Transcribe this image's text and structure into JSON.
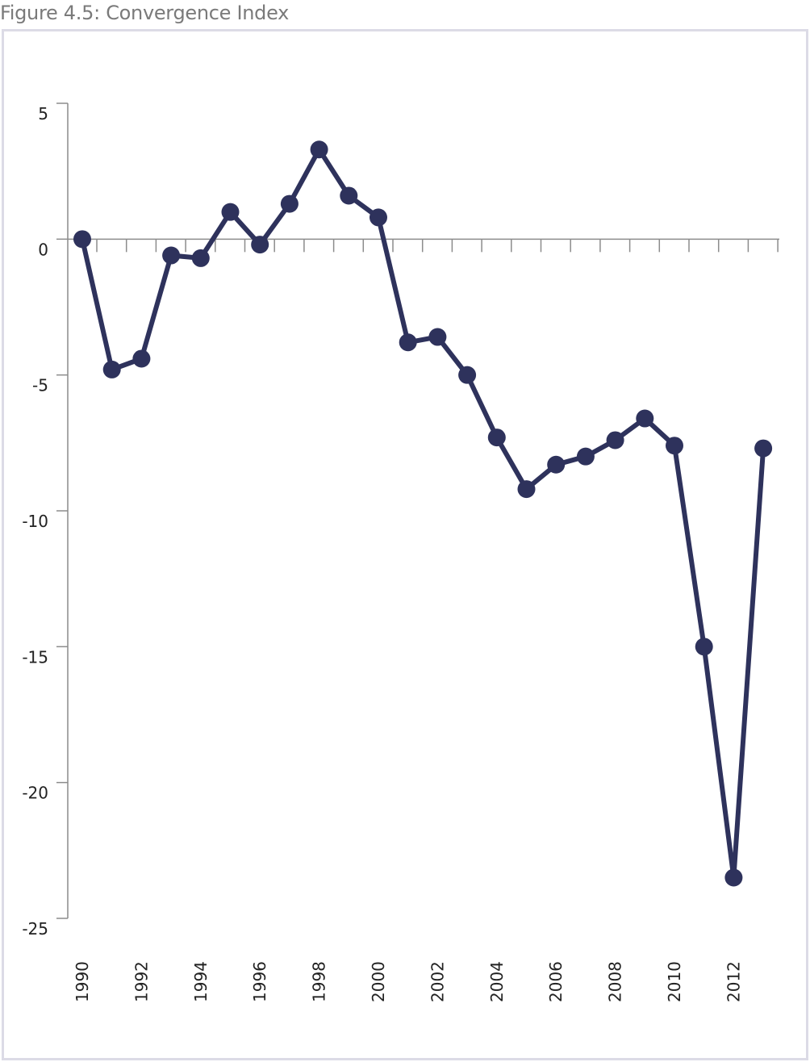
{
  "figure": {
    "title": "Figure 4.5: Convergence Index"
  },
  "colors": {
    "series": "#2e325c",
    "axis": "#8c8c8c",
    "frame": "#dcdbe6",
    "title": "#7a7a7a"
  },
  "chart_data": {
    "type": "line",
    "title": "Figure 4.5: Convergence Index",
    "xlabel": "",
    "ylabel": "",
    "x": [
      1990,
      1991,
      1992,
      1993,
      1994,
      1995,
      1996,
      1997,
      1998,
      1999,
      2000,
      2001,
      2002,
      2003,
      2004,
      2005,
      2006,
      2007,
      2008,
      2009,
      2010,
      2011,
      2012,
      2013
    ],
    "series": [
      {
        "values": [
          0.0,
          -4.8,
          -4.4,
          -0.6,
          -0.7,
          1.0,
          -0.2,
          1.3,
          3.3,
          1.6,
          0.8,
          -3.8,
          -3.6,
          -5.0,
          -7.3,
          -9.2,
          -8.3,
          -8.0,
          -7.4,
          -6.6,
          -7.6,
          -15.0,
          -23.5,
          -7.7
        ]
      }
    ],
    "xticks": [
      "1990",
      "1992",
      "1994",
      "1996",
      "1998",
      "2000",
      "2002",
      "2004",
      "2006",
      "2008",
      "2010",
      "2012"
    ],
    "yticks": [
      "5",
      "0",
      "-5",
      "-10",
      "-15",
      "-20",
      "-25"
    ],
    "ylim": [
      -25,
      5
    ],
    "xlim": [
      1990,
      2013
    ],
    "grid": false,
    "legend": "none",
    "markers": true
  }
}
